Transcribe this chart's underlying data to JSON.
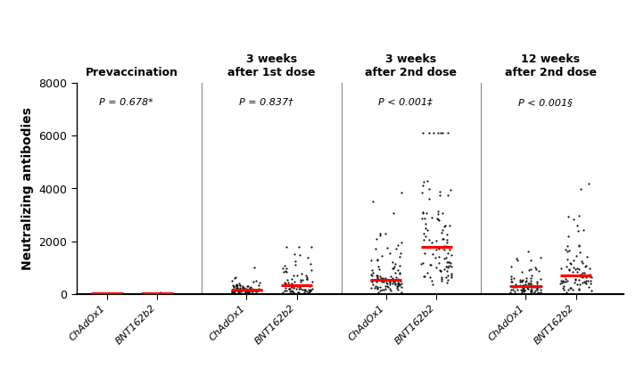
{
  "ylabel": "Neutralizing antibodies",
  "ylim": [
    0,
    8000
  ],
  "yticks": [
    0,
    2000,
    4000,
    6000,
    8000
  ],
  "group_titles": [
    "Prevaccination",
    "3 weeks\nafter 1st dose",
    "3 weeks\nafter 2nd dose",
    "12 weeks\nafter 2nd dose"
  ],
  "p_values": [
    "P = 0.678*",
    "P = 0.837†",
    "P < 0.001‡",
    "P < 0.001§"
  ],
  "background_color": "#ffffff",
  "dot_color": "#111111",
  "median_color": "#ff0000",
  "separator_color": "#888888",
  "group_params": [
    {
      "med_ox": 18,
      "n_ox": 80,
      "sc_ox": 0.5,
      "med_bnt": 15,
      "n_bnt": 80,
      "sc_bnt": 0.5,
      "cap": 200
    },
    {
      "med_ox": 170,
      "n_ox": 80,
      "sc_ox": 0.85,
      "med_bnt": 310,
      "n_bnt": 80,
      "sc_bnt": 0.85,
      "cap": 1800
    },
    {
      "med_ox": 560,
      "n_ox": 100,
      "sc_ox": 0.75,
      "med_bnt": 1800,
      "n_bnt": 100,
      "sc_bnt": 0.75,
      "cap": 6100
    },
    {
      "med_ox": 280,
      "n_ox": 85,
      "sc_ox": 0.85,
      "med_bnt": 680,
      "n_bnt": 85,
      "sc_bnt": 0.85,
      "cap": 4400
    }
  ]
}
